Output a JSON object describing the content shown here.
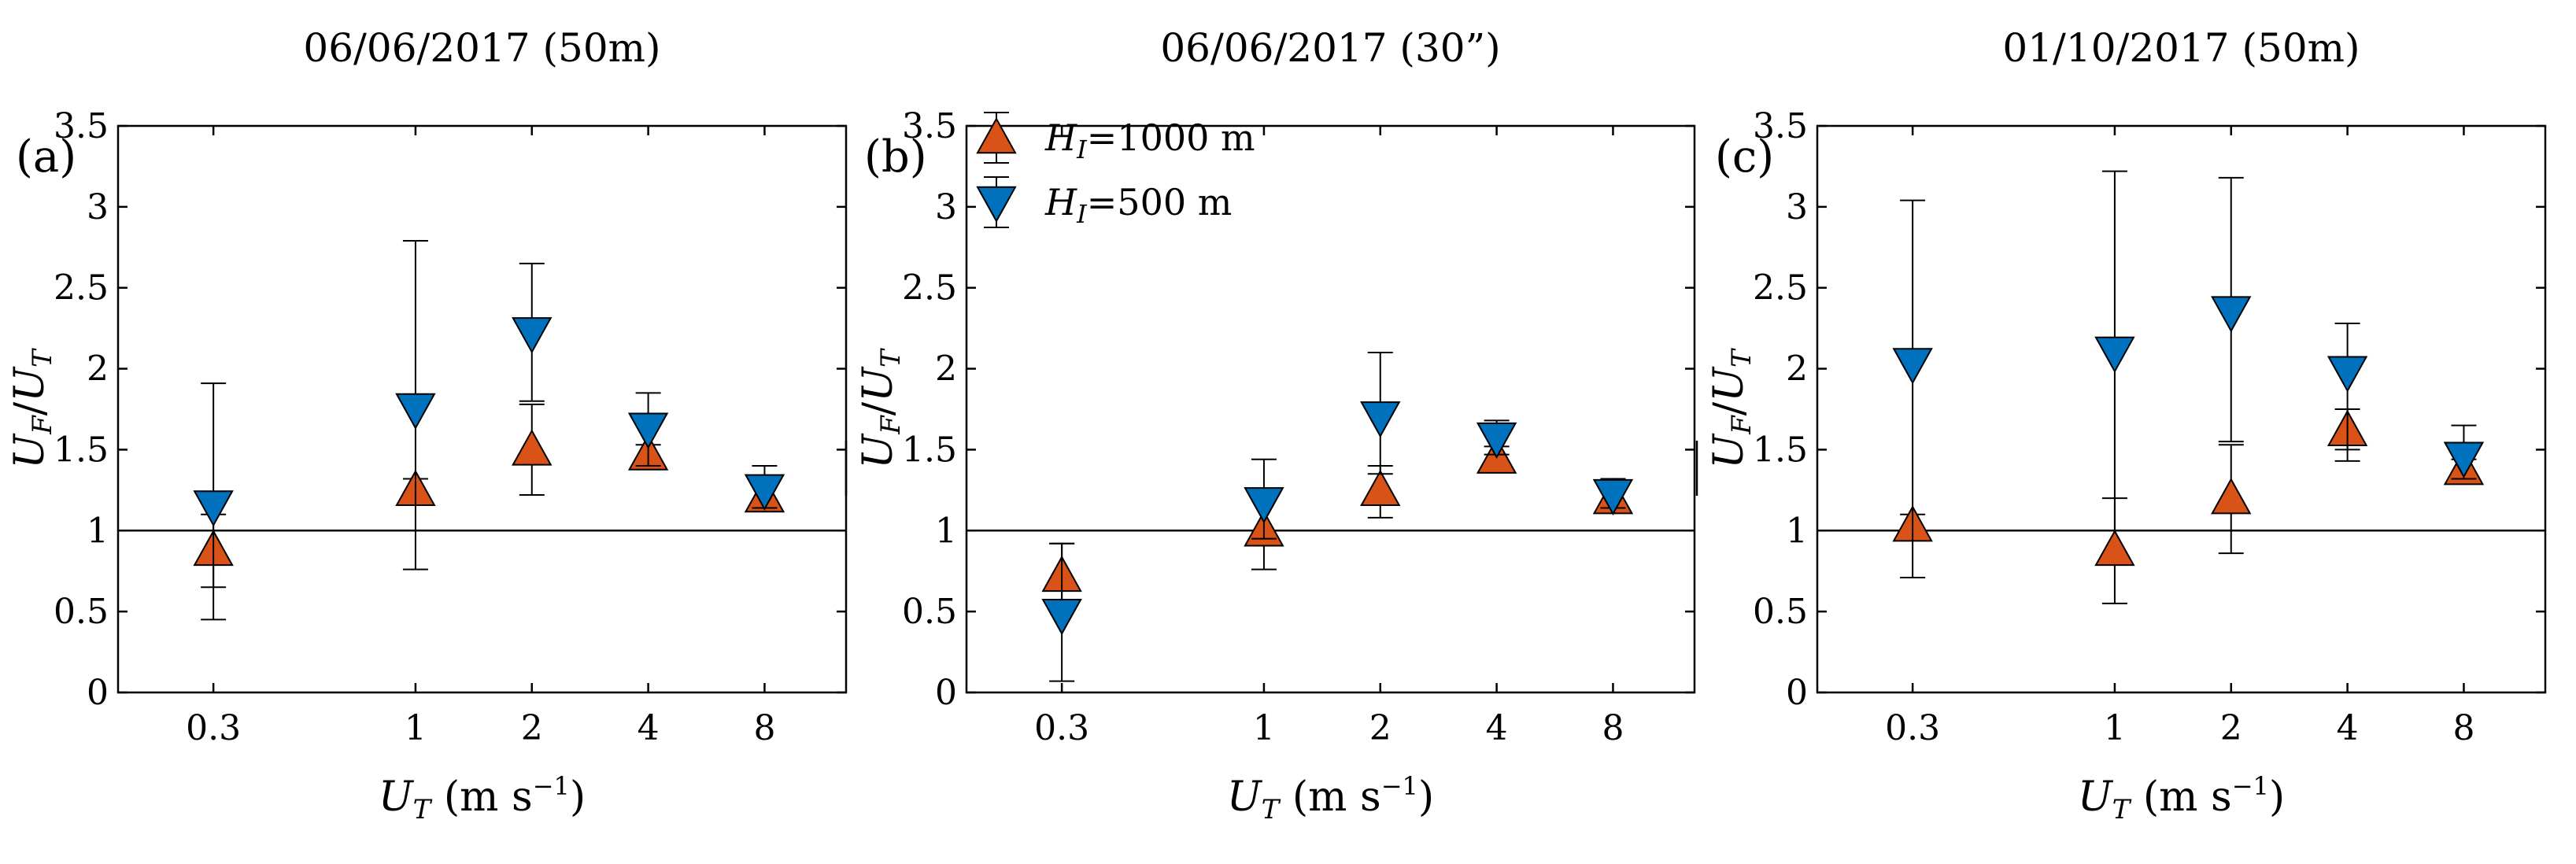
{
  "figure": {
    "y_axis_label_main": "U",
    "y_axis_label_sub": "F",
    "y_axis_label_den": "U",
    "y_axis_label_den_sub": "T",
    "x_axis_label_main": "U",
    "x_axis_label_sub": "T",
    "x_axis_label_units": "(m s",
    "x_axis_label_exp": "−1",
    "x_axis_label_close": ")"
  },
  "legend": {
    "location": "top-left of panel (b)",
    "entries": [
      {
        "symbol": "triangle-up",
        "label_main": "H",
        "label_sub": "I",
        "label_rest": "=1000 m"
      },
      {
        "symbol": "triangle-down",
        "label_main": "H",
        "label_sub": "I",
        "label_rest": "=500 m"
      }
    ]
  },
  "colors": {
    "h1000": "#D95319",
    "h500": "#0072BD",
    "marker_edge": "#000000",
    "errorbar": "#000000",
    "axis": "#000000",
    "refline": "#000000"
  },
  "chart_data": [
    {
      "type": "scatter",
      "panel_label": "(a)",
      "title": "06/06/2017 (50m)",
      "xscale": "log",
      "xlim": [
        0.17,
        13
      ],
      "ylim": [
        0,
        3.5
      ],
      "xticks": [
        0.3,
        1,
        2,
        4,
        8
      ],
      "xtick_labels": [
        "0.3",
        "1",
        "2",
        "4",
        "8"
      ],
      "yticks": [
        0,
        0.5,
        1,
        1.5,
        2,
        2.5,
        3,
        3.5
      ],
      "ytick_labels": [
        "0",
        "0.5",
        "1",
        "1.5",
        "2",
        "2.5",
        "3",
        "3.5"
      ],
      "reference_line_y": 1,
      "series": [
        {
          "name": "HI=1000 m",
          "marker": "triangle-up",
          "points": [
            {
              "x": 0.3,
              "y": 0.88,
              "lo": 0.65,
              "hi": 1.1
            },
            {
              "x": 1,
              "y": 1.25,
              "lo": 1.18,
              "hi": 1.32
            },
            {
              "x": 2,
              "y": 1.5,
              "lo": 1.22,
              "hi": 1.78
            },
            {
              "x": 4,
              "y": 1.47,
              "lo": 1.38,
              "hi": 1.53
            },
            {
              "x": 8,
              "y": 1.21,
              "lo": 1.15,
              "hi": 1.3
            }
          ]
        },
        {
          "name": "HI=500 m",
          "marker": "triangle-down",
          "points": [
            {
              "x": 0.3,
              "y": 1.15,
              "lo": 0.45,
              "hi": 1.91
            },
            {
              "x": 1,
              "y": 1.75,
              "lo": 0.76,
              "hi": 2.79
            },
            {
              "x": 2,
              "y": 2.22,
              "lo": 1.8,
              "hi": 2.65
            },
            {
              "x": 4,
              "y": 1.63,
              "lo": 1.4,
              "hi": 1.85
            },
            {
              "x": 8,
              "y": 1.25,
              "lo": 1.14,
              "hi": 1.4
            }
          ]
        }
      ]
    },
    {
      "type": "scatter",
      "panel_label": "(b)",
      "title": "06/06/2017 (30”)",
      "xscale": "log",
      "xlim": [
        0.17,
        13
      ],
      "ylim": [
        0,
        3.5
      ],
      "xticks": [
        0.3,
        1,
        2,
        4,
        8
      ],
      "xtick_labels": [
        "0.3",
        "1",
        "2",
        "4",
        "8"
      ],
      "yticks": [
        0,
        0.5,
        1,
        1.5,
        2,
        2.5,
        3,
        3.5
      ],
      "ytick_labels": [
        "0",
        "0.5",
        "1",
        "1.5",
        "2",
        "2.5",
        "3",
        "3.5"
      ],
      "reference_line_y": 1,
      "series": [
        {
          "name": "HI=1000 m",
          "marker": "triangle-up",
          "points": [
            {
              "x": 0.3,
              "y": 0.72,
              "lo": 0.5,
              "hi": 0.92
            },
            {
              "x": 1,
              "y": 1.0,
              "lo": 0.76,
              "hi": 1.22
            },
            {
              "x": 2,
              "y": 1.25,
              "lo": 1.08,
              "hi": 1.4
            },
            {
              "x": 4,
              "y": 1.45,
              "lo": 1.38,
              "hi": 1.52
            },
            {
              "x": 8,
              "y": 1.2,
              "lo": 1.15,
              "hi": 1.28
            }
          ]
        },
        {
          "name": "HI=500 m",
          "marker": "triangle-down",
          "points": [
            {
              "x": 0.3,
              "y": 0.48,
              "lo": 0.07,
              "hi": 0.92
            },
            {
              "x": 1,
              "y": 1.17,
              "lo": 0.95,
              "hi": 1.44
            },
            {
              "x": 2,
              "y": 1.7,
              "lo": 1.35,
              "hi": 2.1
            },
            {
              "x": 4,
              "y": 1.57,
              "lo": 1.47,
              "hi": 1.68
            },
            {
              "x": 8,
              "y": 1.22,
              "lo": 1.14,
              "hi": 1.32
            }
          ]
        }
      ]
    },
    {
      "type": "scatter",
      "panel_label": "(c)",
      "title": "01/10/2017 (50m)",
      "xscale": "log",
      "xlim": [
        0.17,
        13
      ],
      "ylim": [
        0,
        3.5
      ],
      "xticks": [
        0.3,
        1,
        2,
        4,
        8
      ],
      "xtick_labels": [
        "0.3",
        "1",
        "2",
        "4",
        "8"
      ],
      "yticks": [
        0,
        0.5,
        1,
        1.5,
        2,
        2.5,
        3,
        3.5
      ],
      "ytick_labels": [
        "0",
        "0.5",
        "1",
        "1.5",
        "2",
        "2.5",
        "3",
        "3.5"
      ],
      "reference_line_y": 1,
      "series": [
        {
          "name": "HI=1000 m",
          "marker": "triangle-up",
          "points": [
            {
              "x": 0.3,
              "y": 1.03,
              "lo": 0.95,
              "hi": 1.1
            },
            {
              "x": 1,
              "y": 0.88,
              "lo": 0.55,
              "hi": 1.2
            },
            {
              "x": 2,
              "y": 1.2,
              "lo": 0.86,
              "hi": 1.53
            },
            {
              "x": 4,
              "y": 1.62,
              "lo": 1.5,
              "hi": 1.75
            },
            {
              "x": 8,
              "y": 1.38,
              "lo": 1.32,
              "hi": 1.44
            }
          ]
        },
        {
          "name": "HI=500 m",
          "marker": "triangle-down",
          "points": [
            {
              "x": 0.3,
              "y": 2.03,
              "lo": 0.71,
              "hi": 3.04
            },
            {
              "x": 1,
              "y": 2.1,
              "lo": 1.0,
              "hi": 3.22
            },
            {
              "x": 2,
              "y": 2.35,
              "lo": 1.55,
              "hi": 3.18
            },
            {
              "x": 4,
              "y": 1.98,
              "lo": 1.43,
              "hi": 2.28
            },
            {
              "x": 8,
              "y": 1.45,
              "lo": 1.32,
              "hi": 1.65
            }
          ]
        }
      ]
    }
  ]
}
